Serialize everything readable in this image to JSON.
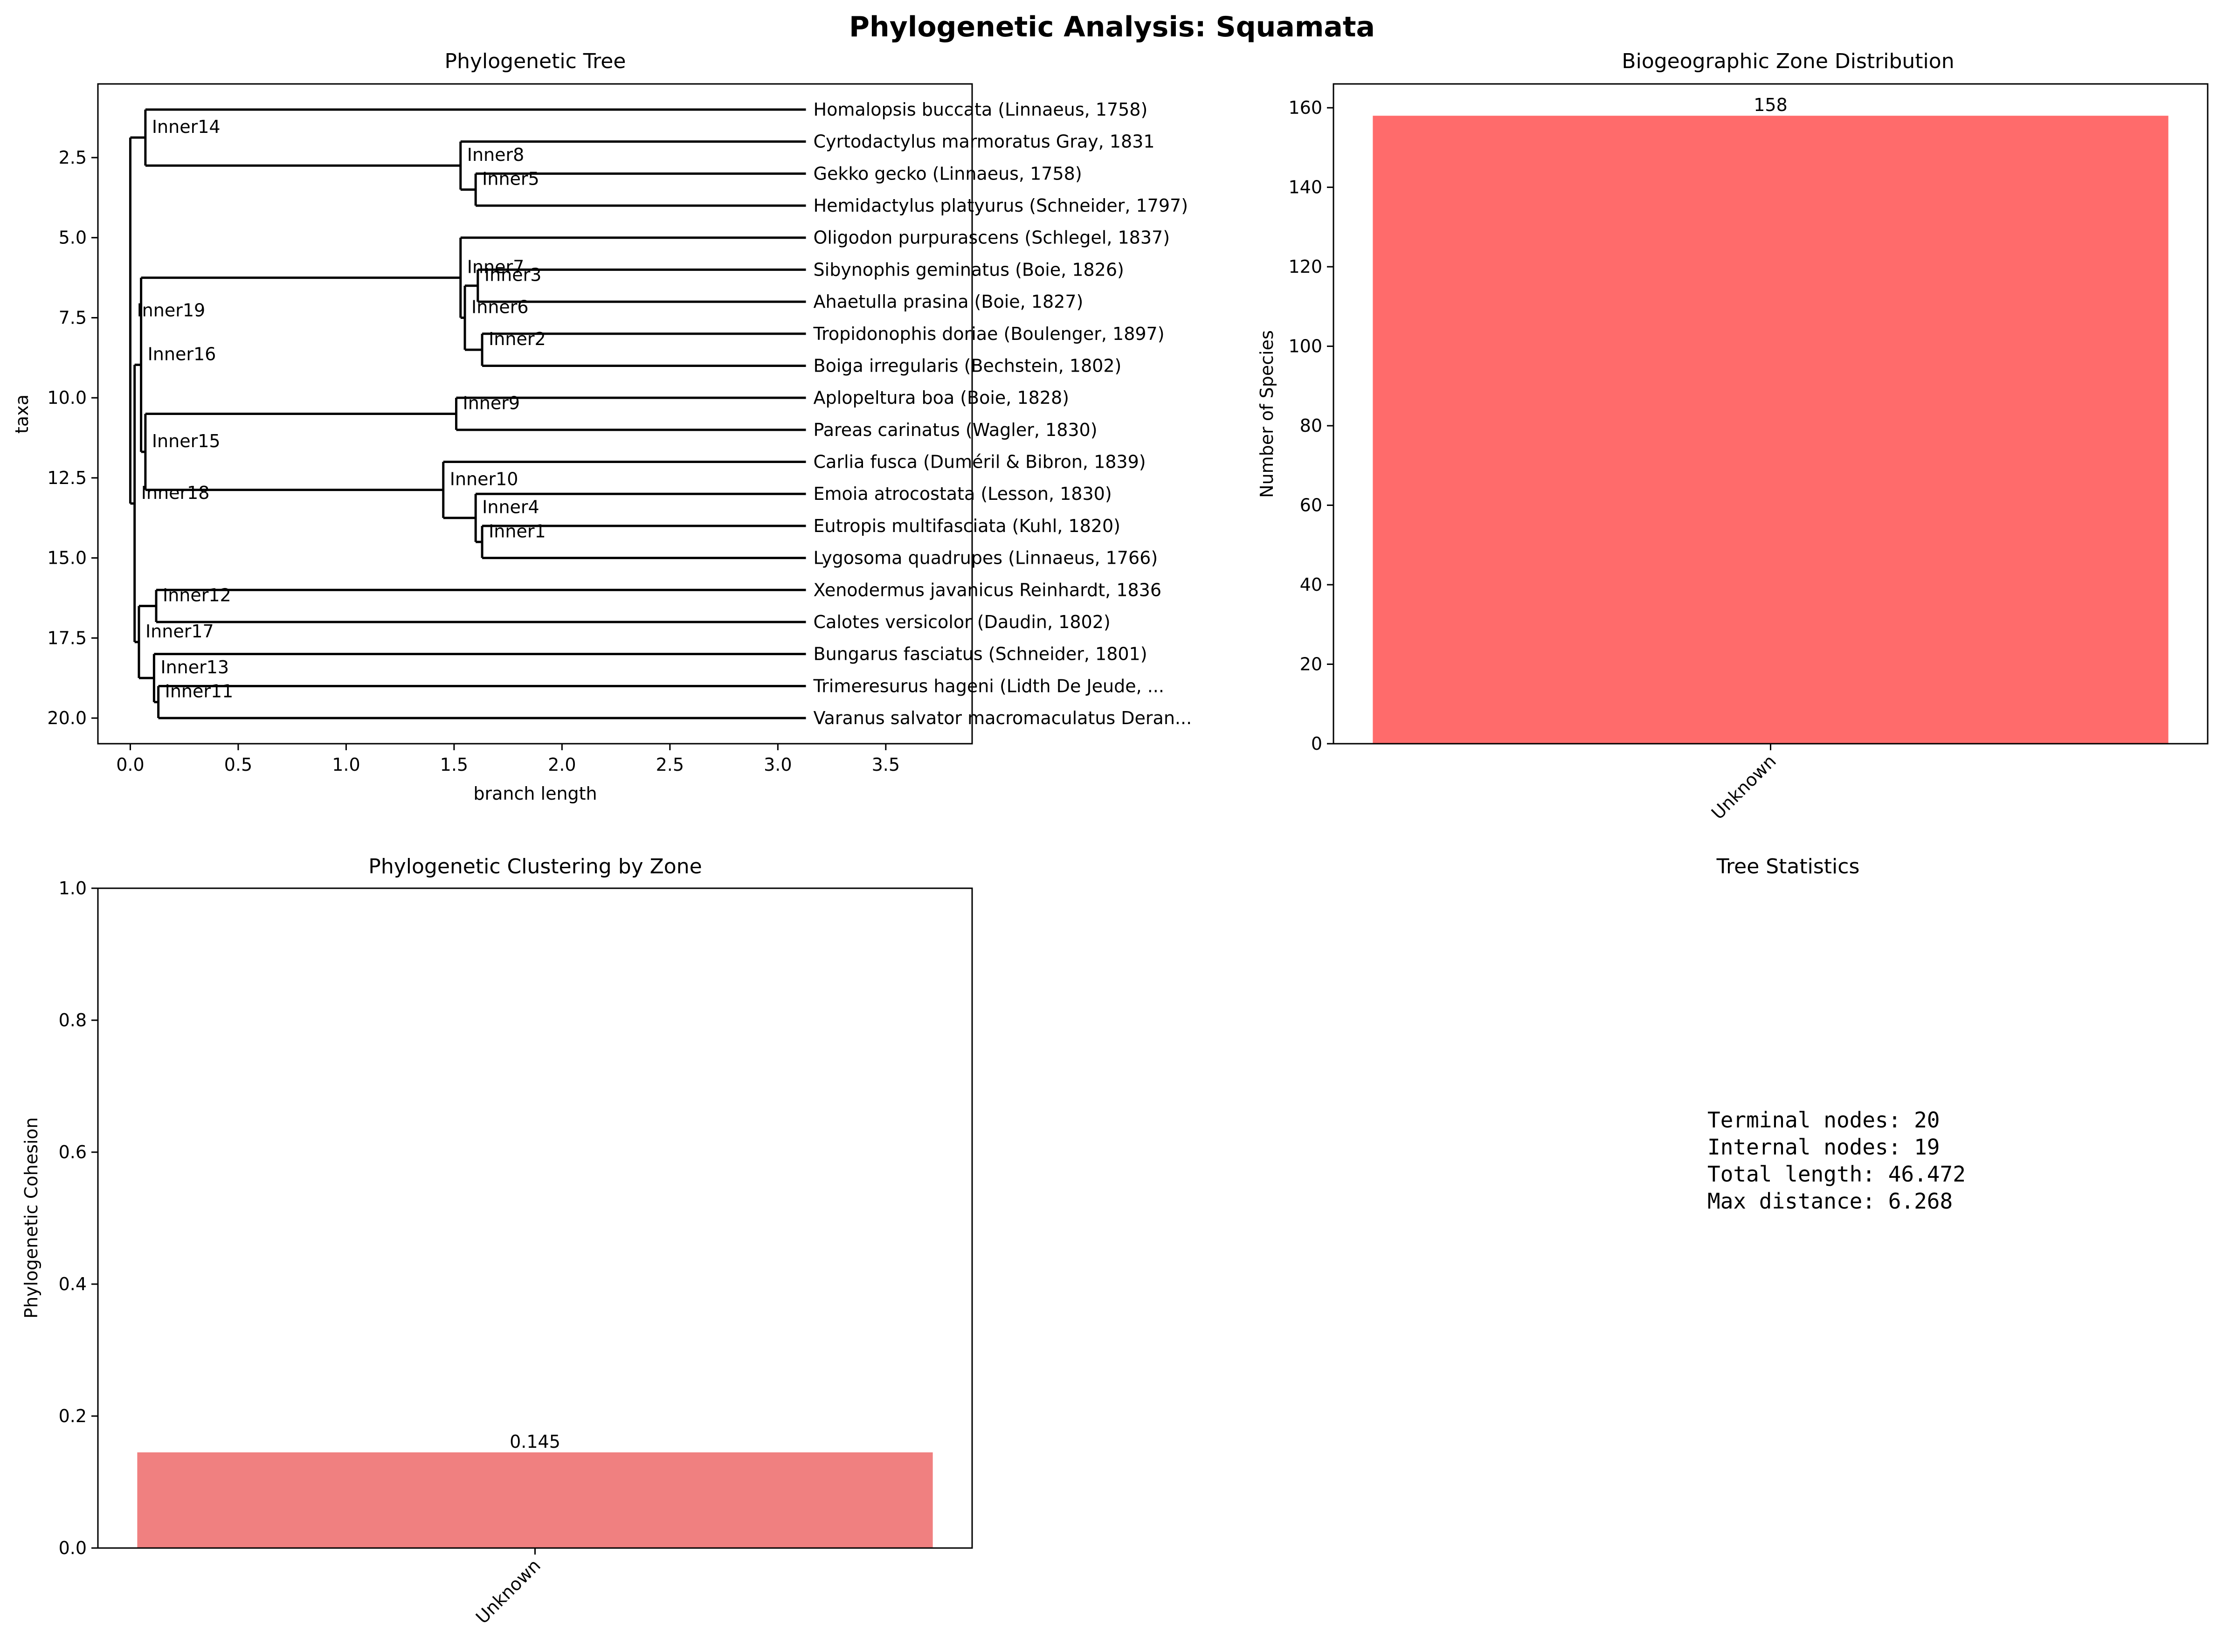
{
  "figure": {
    "title": "Phylogenetic Analysis: Squamata"
  },
  "colors": {
    "tree_line": "#000000",
    "zone_bar": "#ff6b6b",
    "cohesion_bar": "#f08080"
  },
  "chart_data": [
    {
      "type": "dendrogram",
      "title": "Phylogenetic Tree",
      "xlabel": "branch length",
      "ylabel": "taxa",
      "xlim": [
        -0.15,
        3.9
      ],
      "ylim": [
        20.8,
        0.2
      ],
      "xticks": [
        "0.0",
        "0.5",
        "1.0",
        "1.5",
        "2.0",
        "2.5",
        "3.0",
        "3.5"
      ],
      "yticks": [
        "2.5",
        "5.0",
        "7.5",
        "10.0",
        "12.5",
        "15.0",
        "17.5",
        "20.0"
      ],
      "leaves": [
        {
          "label": "Homalopsis buccata (Linnaeus, 1758)",
          "x": 3.13,
          "y": 1
        },
        {
          "label": "Cyrtodactylus marmoratus Gray, 1831",
          "x": 3.13,
          "y": 2
        },
        {
          "label": "Gekko gecko (Linnaeus, 1758)",
          "x": 3.13,
          "y": 3
        },
        {
          "label": "Hemidactylus platyurus (Schneider, 1797)",
          "x": 3.13,
          "y": 4
        },
        {
          "label": "Oligodon purpurascens (Schlegel, 1837)",
          "x": 3.13,
          "y": 5
        },
        {
          "label": "Sibynophis geminatus (Boie, 1826)",
          "x": 3.13,
          "y": 6
        },
        {
          "label": "Ahaetulla prasina (Boie, 1827)",
          "x": 3.13,
          "y": 7
        },
        {
          "label": "Tropidonophis doriae (Boulenger, 1897)",
          "x": 3.13,
          "y": 8
        },
        {
          "label": "Boiga irregularis (Bechstein, 1802)",
          "x": 3.13,
          "y": 9
        },
        {
          "label": "Aplopeltura boa (Boie, 1828)",
          "x": 3.13,
          "y": 10
        },
        {
          "label": "Pareas carinatus (Wagler, 1830)",
          "x": 3.13,
          "y": 11
        },
        {
          "label": "Carlia fusca (Duméril & Bibron, 1839)",
          "x": 3.13,
          "y": 12
        },
        {
          "label": "Emoia atrocostata (Lesson, 1830)",
          "x": 3.13,
          "y": 13
        },
        {
          "label": "Eutropis multifasciata (Kuhl, 1820)",
          "x": 3.13,
          "y": 14
        },
        {
          "label": "Lygosoma quadrupes (Linnaeus, 1766)",
          "x": 3.13,
          "y": 15
        },
        {
          "label": "Xenodermus javanicus Reinhardt, 1836",
          "x": 3.13,
          "y": 16
        },
        {
          "label": "Calotes versicolor (Daudin, 1802)",
          "x": 3.13,
          "y": 17
        },
        {
          "label": "Bungarus fasciatus (Schneider, 1801)",
          "x": 3.13,
          "y": 18
        },
        {
          "label": "Trimeresurus hageni (Lidth De Jeude, ...",
          "x": 3.13,
          "y": 19
        },
        {
          "label": "Varanus salvator macromaculatus Deran...",
          "x": 3.13,
          "y": 20
        }
      ],
      "internal_nodes": [
        {
          "label": "Inner1",
          "x": 1.63,
          "y1": 14,
          "y2": 15,
          "py": 14.5
        },
        {
          "label": "Inner2",
          "x": 1.63,
          "y1": 8,
          "y2": 9,
          "py": 8.5
        },
        {
          "label": "Inner3",
          "x": 1.61,
          "y1": 6,
          "y2": 7,
          "py": 6.5
        },
        {
          "label": "Inner4",
          "x": 1.6,
          "y1": 13,
          "y2": 14.5,
          "py": 13.75
        },
        {
          "label": "Inner5",
          "x": 1.6,
          "y1": 3,
          "y2": 4,
          "py": 3.5
        },
        {
          "label": "Inner6",
          "x": 1.55,
          "y1": 6.5,
          "y2": 8.5,
          "py": 7.5
        },
        {
          "label": "Inner7",
          "x": 1.53,
          "y1": 5,
          "y2": 7.5,
          "py": 6.25
        },
        {
          "label": "Inner8",
          "x": 1.53,
          "y1": 2,
          "y2": 3.5,
          "py": 2.75
        },
        {
          "label": "Inner9",
          "x": 1.51,
          "y1": 10,
          "y2": 11,
          "py": 10.5
        },
        {
          "label": "Inner10",
          "x": 1.45,
          "y1": 12,
          "y2": 13.75,
          "py": 12.875
        },
        {
          "label": "Inner11",
          "x": 0.13,
          "y1": 19,
          "y2": 20,
          "py": 19.5
        },
        {
          "label": "Inner12",
          "x": 0.12,
          "y1": 16,
          "y2": 17,
          "py": 16.5
        },
        {
          "label": "Inner13",
          "x": 0.11,
          "y1": 18,
          "y2": 19.5,
          "py": 18.75
        },
        {
          "label": "Inner14",
          "x": 0.07,
          "y1": 1,
          "y2": 2.75,
          "py": 1.875
        },
        {
          "label": "Inner15",
          "x": 0.07,
          "y1": 10.5,
          "y2": 12.875,
          "py": 11.6875
        },
        {
          "label": "Inner16",
          "x": 0.05,
          "y1": 6.25,
          "y2": 11.6875,
          "py": 8.97
        },
        {
          "label": "Inner17",
          "x": 0.04,
          "y1": 16.5,
          "y2": 18.75,
          "py": 17.625
        },
        {
          "label": "Inner18",
          "x": 0.02,
          "y1": 8.97,
          "y2": 17.625,
          "py": 13.3
        },
        {
          "label": "Inner19",
          "x": 0.0,
          "y1": 1.875,
          "y2": 13.3,
          "py": 7.6
        }
      ]
    },
    {
      "type": "bar",
      "title": "Biogeographic Zone Distribution",
      "xlabel": "",
      "ylabel": "Number of Species",
      "categories": [
        "Unknown"
      ],
      "values": [
        158
      ],
      "data_labels": [
        "158"
      ],
      "ylim": [
        0,
        166
      ],
      "yticks": [
        "0",
        "20",
        "40",
        "60",
        "80",
        "100",
        "120",
        "140",
        "160"
      ]
    },
    {
      "type": "bar",
      "title": "Phylogenetic Clustering by Zone",
      "xlabel": "",
      "ylabel": "Phylogenetic Cohesion",
      "categories": [
        "Unknown"
      ],
      "values": [
        0.145
      ],
      "data_labels": [
        "0.145"
      ],
      "ylim": [
        0,
        1.0
      ],
      "yticks": [
        "0.0",
        "0.2",
        "0.4",
        "0.6",
        "0.8",
        "1.0"
      ]
    },
    {
      "type": "table",
      "title": "Tree Statistics",
      "lines": [
        "Terminal nodes: 20",
        "Internal nodes: 19",
        "Total length: 46.472",
        "Max distance: 6.268"
      ]
    }
  ]
}
